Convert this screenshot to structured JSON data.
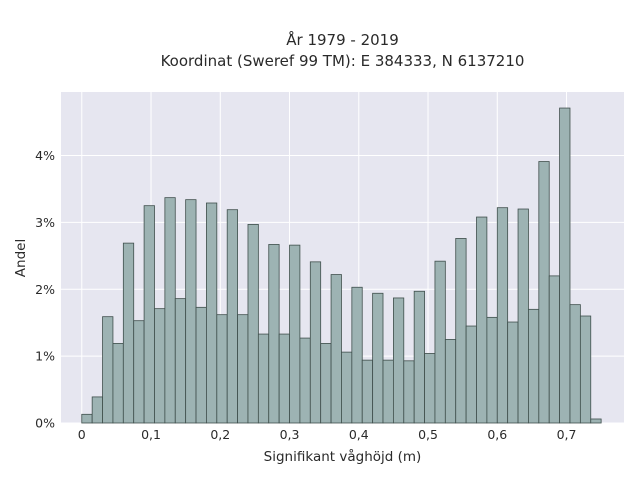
{
  "chart_data": {
    "type": "bar",
    "title": "År 1979 - 2019",
    "subtitle": "Koordinat (Sweref 99 TM): E 384333, N 6137210",
    "xlabel": "Signifikant våghöjd (m)",
    "ylabel": "Andel",
    "x_ticks": [
      "0",
      "0,1",
      "0,2",
      "0,3",
      "0,4",
      "0,5",
      "0,6",
      "0,7"
    ],
    "y_ticks": [
      "0%",
      "1%",
      "2%",
      "3%",
      "4%"
    ],
    "xlim": [
      -0.03,
      0.783
    ],
    "ylim": [
      0,
      4.95
    ],
    "grid": true,
    "bar_color": "#9db3b3",
    "edge_color": "#3f4f4c",
    "bins": {
      "start": 0.0,
      "width": 0.015,
      "values": [
        0.13,
        0.39,
        1.59,
        1.19,
        2.69,
        1.53,
        3.25,
        1.71,
        3.37,
        1.86,
        3.34,
        1.73,
        3.29,
        1.62,
        3.19,
        1.62,
        2.97,
        1.33,
        2.67,
        1.33,
        2.66,
        1.27,
        2.41,
        1.19,
        2.22,
        1.06,
        2.03,
        0.94,
        1.94,
        0.94,
        1.87,
        0.93,
        1.97,
        1.04,
        2.42,
        1.25,
        2.76,
        1.45,
        3.08,
        1.58,
        3.22,
        1.51,
        3.2,
        1.7,
        3.91,
        2.2,
        4.71,
        1.77,
        1.6,
        0.06
      ]
    }
  },
  "colors": {
    "plot_background": "#e6e6f0",
    "grid": "#ffffff",
    "page_background": "#ffffff"
  }
}
